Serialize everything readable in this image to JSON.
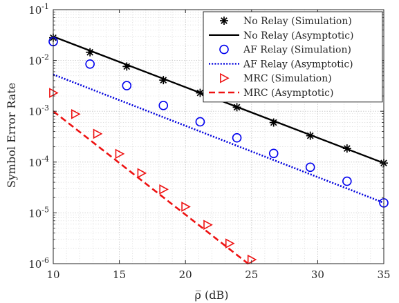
{
  "chart_data": {
    "type": "line",
    "title": "",
    "xlabel": "ρ̅ (dB)",
    "ylabel": "Symbol Error Rate",
    "xlim": [
      10,
      35
    ],
    "ylim": [
      1e-06,
      0.1
    ],
    "yscale": "log",
    "grid": true,
    "legend_position": "top-right",
    "x_ticks": [
      "10",
      "15",
      "20",
      "25",
      "30",
      "35"
    ],
    "y_ticks": [
      {
        "base": "10",
        "exp": "-6"
      },
      {
        "base": "10",
        "exp": "-5"
      },
      {
        "base": "10",
        "exp": "-4"
      },
      {
        "base": "10",
        "exp": "-3"
      },
      {
        "base": "10",
        "exp": "-2"
      },
      {
        "base": "10",
        "exp": "-1"
      }
    ],
    "series": [
      {
        "name": "No Relay (Simulation)",
        "style": "marker",
        "marker": "asterisk",
        "color": "#000000",
        "x": [
          10,
          12.78,
          15.56,
          18.33,
          21.11,
          23.89,
          26.67,
          29.44,
          32.22,
          35
        ],
        "y": [
          0.028,
          0.0145,
          0.0076,
          0.0041,
          0.0023,
          0.0012,
          0.0006,
          0.00033,
          0.000185,
          9.55e-05
        ]
      },
      {
        "name": "No Relay (Asymptotic)",
        "style": "solid",
        "color": "#000000",
        "x": [
          10,
          35
        ],
        "y": [
          0.0295,
          9.55e-05
        ]
      },
      {
        "name": "AF Relay (Simulation)",
        "style": "marker",
        "marker": "circle",
        "color": "#0000ee",
        "x": [
          10,
          12.78,
          15.56,
          18.33,
          21.11,
          23.89,
          26.67,
          29.44,
          32.22,
          35
        ],
        "y": [
          0.0235,
          0.0085,
          0.0032,
          0.0013,
          0.00062,
          0.0003,
          0.000148,
          7.9e-05,
          4.2e-05,
          1.57e-05
        ]
      },
      {
        "name": "AF Relay (Asymptotic)",
        "style": "dotted",
        "color": "#0000dd",
        "x": [
          10,
          35
        ],
        "y": [
          0.0053,
          1.58e-05
        ]
      },
      {
        "name": "MRC (Simulation)",
        "style": "marker",
        "marker": "triangle-right",
        "color": "#ee1111",
        "x": [
          10,
          11.67,
          13.33,
          15,
          16.67,
          18.33,
          20,
          21.67,
          23.33,
          25
        ],
        "y": [
          0.0023,
          0.00088,
          0.00036,
          0.000145,
          6.05e-05,
          2.9e-05,
          1.32e-05,
          5.8e-06,
          2.5e-06,
          1.2e-06
        ]
      },
      {
        "name": "MRC (Asymptotic)",
        "style": "dashed",
        "color": "#ee1111",
        "x": [
          10,
          25.5
        ],
        "y": [
          0.001,
          7e-07
        ]
      }
    ]
  }
}
